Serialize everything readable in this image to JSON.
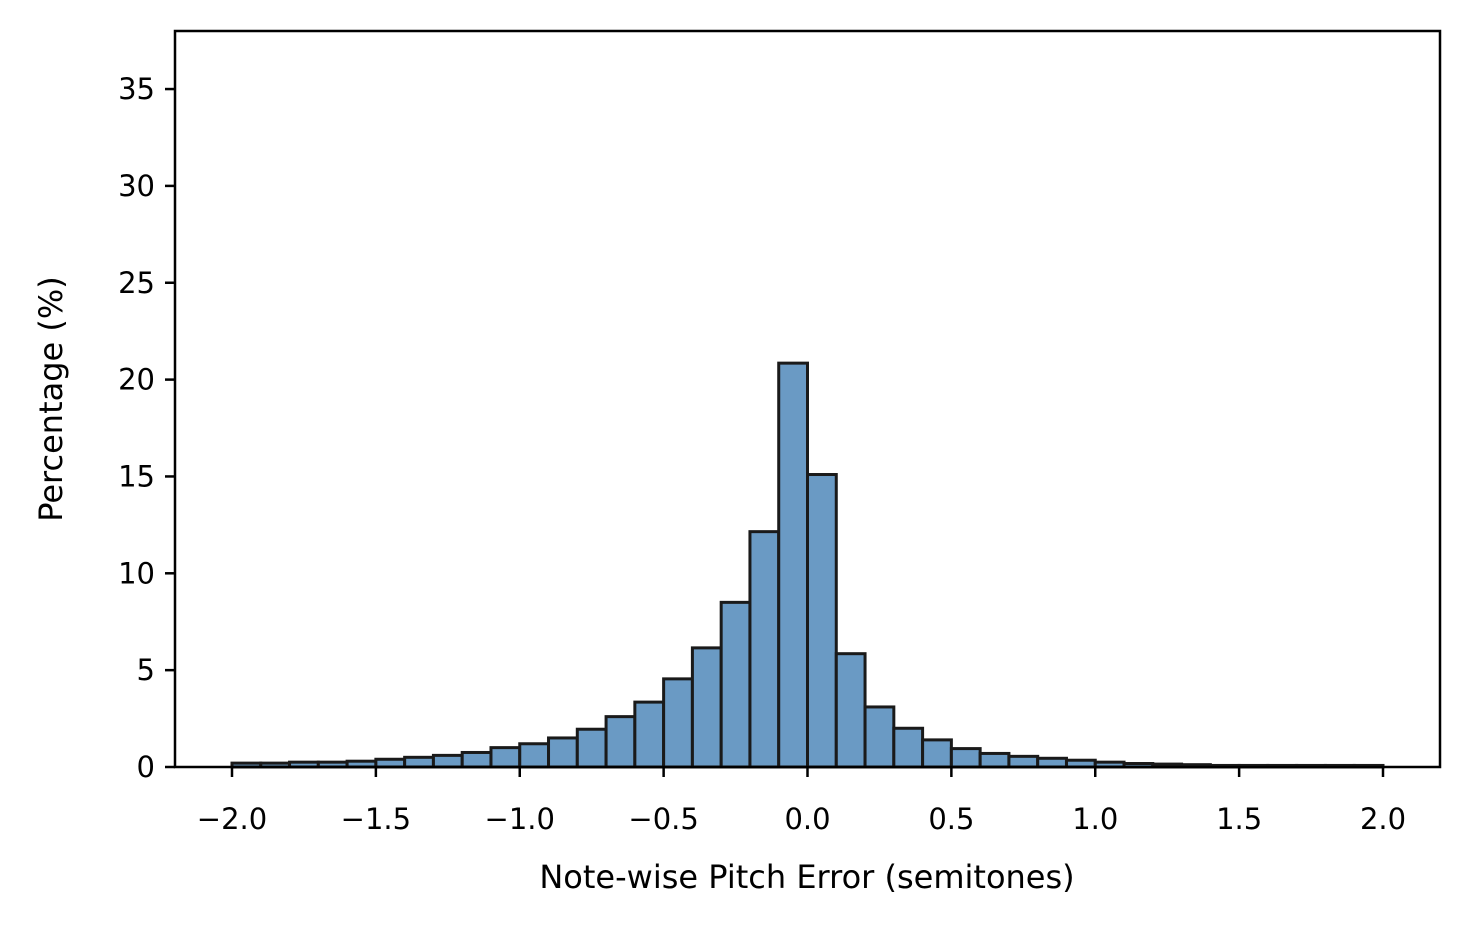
{
  "chart_data": {
    "type": "bar",
    "title": "",
    "xlabel": "Note-wise Pitch Error (semitones)",
    "ylabel": "Percentage (%)",
    "xlim": [
      -2.2,
      2.2
    ],
    "ylim": [
      0,
      38
    ],
    "grid": false,
    "legend": null,
    "bar_color": "#6a9ac4",
    "edge_color": "#1a1a1a",
    "bin_width": 0.1,
    "x_ticks": [
      -2.0,
      -1.5,
      -1.0,
      -0.5,
      0.0,
      0.5,
      1.0,
      1.5,
      2.0
    ],
    "x_tick_labels": [
      "−2.0",
      "−1.5",
      "−1.0",
      "−0.5",
      "0.0",
      "0.5",
      "1.0",
      "1.5",
      "2.0"
    ],
    "y_ticks": [
      0,
      5,
      10,
      15,
      20,
      25,
      30,
      35
    ],
    "y_tick_labels": [
      "0",
      "5",
      "10",
      "15",
      "20",
      "25",
      "30",
      "35"
    ],
    "bin_left_edges": [
      -2.0,
      -1.9,
      -1.8,
      -1.7,
      -1.6,
      -1.5,
      -1.4,
      -1.3,
      -1.2,
      -1.1,
      -1.0,
      -0.9,
      -0.8,
      -0.7,
      -0.6,
      -0.5,
      -0.4,
      -0.3,
      -0.2,
      -0.1,
      0.0,
      0.1,
      0.2,
      0.3,
      0.4,
      0.5,
      0.6,
      0.7,
      0.8,
      0.9,
      1.0,
      1.1,
      1.2,
      1.3,
      1.4,
      1.5,
      1.6,
      1.7,
      1.8,
      1.9
    ],
    "values": [
      0.2,
      0.2,
      0.25,
      0.25,
      0.3,
      0.4,
      0.5,
      0.6,
      0.75,
      1.0,
      1.2,
      1.5,
      1.95,
      2.6,
      3.35,
      4.55,
      6.15,
      8.5,
      12.15,
      20.85,
      15.1,
      5.85,
      3.1,
      2.0,
      1.4,
      0.95,
      0.7,
      0.55,
      0.45,
      0.35,
      0.25,
      0.18,
      0.15,
      0.12,
      0.08,
      0.08,
      0.08,
      0.08,
      0.08,
      0.08
    ]
  }
}
